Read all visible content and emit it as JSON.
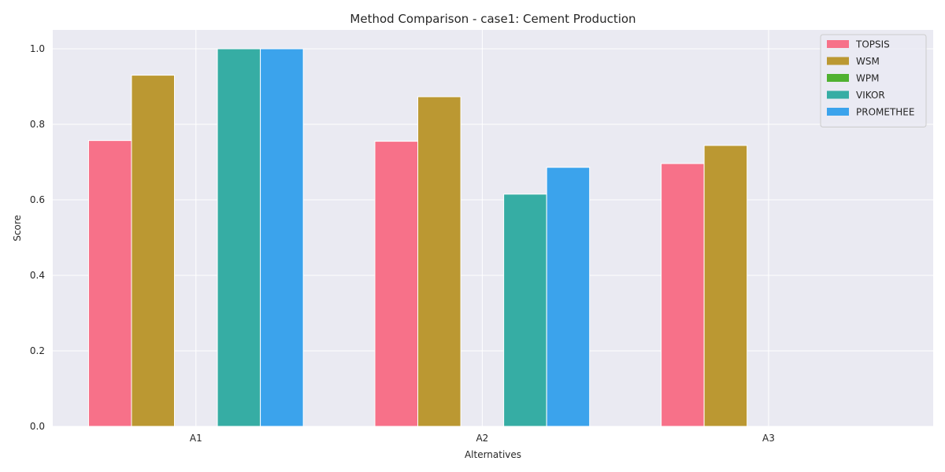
{
  "chart_data": {
    "type": "bar",
    "title": "Method Comparison - case1: Cement Production",
    "xlabel": "Alternatives",
    "ylabel": "Score",
    "categories": [
      "A1",
      "A2",
      "A3"
    ],
    "ylim": [
      0,
      1.05
    ],
    "yticks": [
      "0.0",
      "0.2",
      "0.4",
      "0.6",
      "0.8",
      "1.0"
    ],
    "grid": true,
    "legend_position": "top-right",
    "series": [
      {
        "name": "TOPSIS",
        "color": "#f77189",
        "values": [
          0.757,
          0.755,
          0.696
        ]
      },
      {
        "name": "WSM",
        "color": "#bb9832",
        "values": [
          0.93,
          0.873,
          0.744
        ]
      },
      {
        "name": "WPM",
        "color": "#50b131",
        "values": [
          0,
          0,
          0
        ]
      },
      {
        "name": "VIKOR",
        "color": "#36ada4",
        "values": [
          1.0,
          0.615,
          0
        ]
      },
      {
        "name": "PROMETHEE",
        "color": "#3ba3ec",
        "values": [
          1.0,
          0.686,
          0
        ]
      }
    ]
  }
}
